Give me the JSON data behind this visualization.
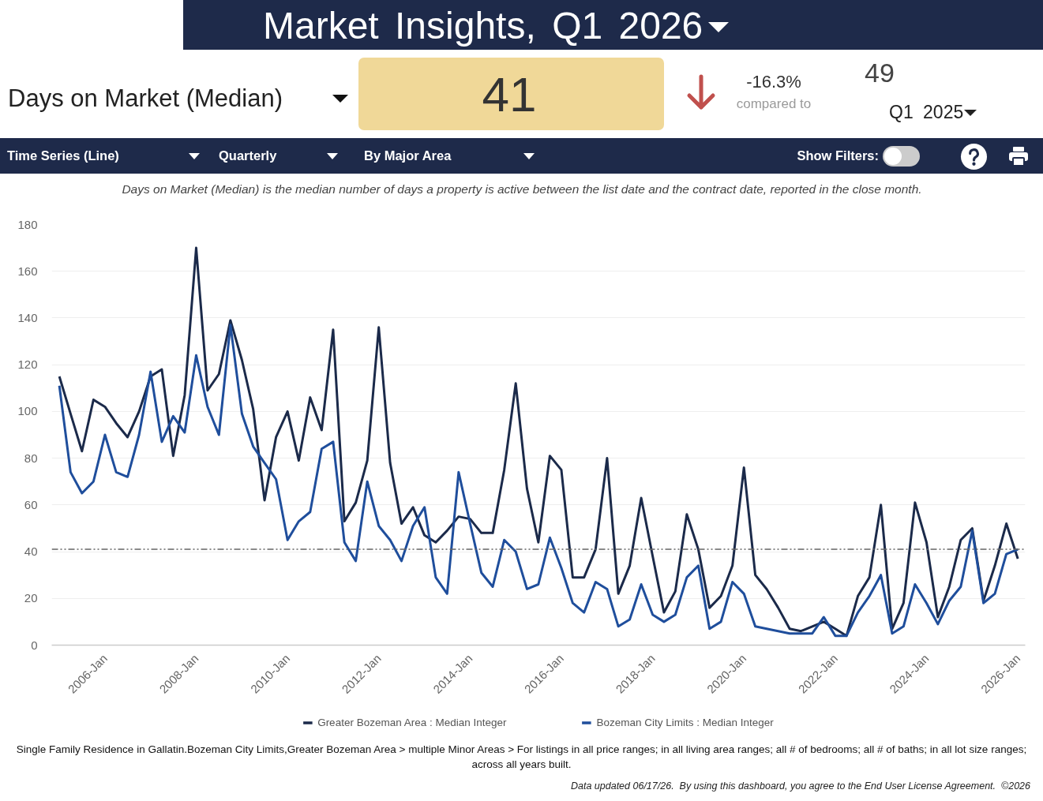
{
  "chart_data": {
    "type": "line",
    "title": "Market Insights, Q1 2026",
    "subtitle": "Days on Market (Median)",
    "annotations": [
      "41",
      "-16.3%",
      "compared to",
      "49",
      "Q1 2025",
      "Time Series (Line)",
      "Quarterly",
      "By Major Area",
      "Show Filters:",
      "Days on Market (Median) is the median number of days a property is active between the list date and the contract date, reported in the close month.",
      "Single Family Residence in Gallatin.Bozeman City Limits,Greater Bozeman Area > multiple Minor Areas > For listings in all price ranges; in all living area ranges; all # of bedrooms; all # of baths; in all lot size ranges; across all years built.",
      "Data updated 06/17/26.  By using this dashboard, you agree to the End User License Agreement.  ©2026"
    ],
    "x": [
      "2005-01",
      "2005-04",
      "2005-07",
      "2005-10",
      "2006-01",
      "2006-04",
      "2006-07",
      "2006-10",
      "2007-01",
      "2007-04",
      "2007-07",
      "2007-10",
      "2008-01",
      "2008-04",
      "2008-07",
      "2008-10",
      "2009-01",
      "2009-04",
      "2009-07",
      "2009-10",
      "2010-01",
      "2010-04",
      "2010-07",
      "2010-10",
      "2011-01",
      "2011-04",
      "2011-07",
      "2011-10",
      "2012-01",
      "2012-04",
      "2012-07",
      "2012-10",
      "2013-01",
      "2013-04",
      "2013-07",
      "2013-10",
      "2014-01",
      "2014-04",
      "2014-07",
      "2014-10",
      "2015-01",
      "2015-04",
      "2015-07",
      "2015-10",
      "2016-01",
      "2016-04",
      "2016-07",
      "2016-10",
      "2017-01",
      "2017-04",
      "2017-07",
      "2017-10",
      "2018-01",
      "2018-04",
      "2018-07",
      "2018-10",
      "2019-01",
      "2019-04",
      "2019-07",
      "2019-10",
      "2020-01",
      "2020-04",
      "2020-07",
      "2020-10",
      "2021-01",
      "2021-04",
      "2021-07",
      "2021-10",
      "2022-01",
      "2022-04",
      "2022-07",
      "2022-10",
      "2023-01",
      "2023-04",
      "2023-07",
      "2023-10",
      "2024-01",
      "2024-04",
      "2024-07",
      "2024-10",
      "2025-01",
      "2025-04",
      "2025-07",
      "2025-10",
      "2026-01"
    ],
    "series": [
      {
        "name": "Greater Bozeman Area : Median Integer",
        "color": "#1b2a4a",
        "values": [
          115,
          99,
          83,
          105,
          102,
          95,
          89,
          100,
          115,
          118,
          81,
          107,
          170,
          109,
          116,
          139,
          122,
          101,
          62,
          89,
          100,
          79,
          106,
          92,
          135,
          53,
          61,
          79,
          136,
          78,
          52,
          59,
          47,
          44,
          49,
          55,
          54,
          48,
          48,
          75,
          112,
          67,
          44,
          81,
          75,
          29,
          29,
          41,
          80,
          22,
          34,
          63,
          38,
          14,
          23,
          56,
          41,
          16,
          21,
          34,
          76,
          30,
          24,
          16,
          7,
          6,
          8,
          10,
          7,
          4,
          21,
          29,
          60,
          7,
          18,
          61,
          44,
          12,
          25,
          45,
          50,
          19,
          34,
          52,
          37
        ]
      },
      {
        "name": "Bozeman City Limits : Median Integer",
        "color": "#1f4e9c",
        "values": [
          111,
          74,
          65,
          70,
          90,
          74,
          72,
          90,
          117,
          87,
          98,
          91,
          124,
          102,
          90,
          137,
          99,
          85,
          78,
          71,
          45,
          53,
          57,
          84,
          87,
          44,
          36,
          70,
          51,
          45,
          36,
          51,
          59,
          29,
          22,
          74,
          52,
          31,
          25,
          45,
          40,
          24,
          26,
          46,
          33,
          18,
          14,
          27,
          24,
          8,
          11,
          26,
          13,
          10,
          13,
          29,
          34,
          7,
          10,
          27,
          22,
          8,
          7,
          6,
          5,
          5,
          5,
          12,
          4,
          4,
          14,
          21,
          30,
          5,
          8,
          26,
          18,
          9,
          19,
          25,
          49,
          18,
          22,
          39,
          41
        ]
      }
    ],
    "xlim": [
      "2004-11",
      "2026-03"
    ],
    "xticks": [
      {
        "value": "2006-01",
        "label": "2006-Jan"
      },
      {
        "value": "2008-01",
        "label": "2008-Jan"
      },
      {
        "value": "2010-01",
        "label": "2010-Jan"
      },
      {
        "value": "2012-01",
        "label": "2012-Jan"
      },
      {
        "value": "2014-01",
        "label": "2014-Jan"
      },
      {
        "value": "2016-01",
        "label": "2016-Jan"
      },
      {
        "value": "2018-01",
        "label": "2018-Jan"
      },
      {
        "value": "2020-01",
        "label": "2020-Jan"
      },
      {
        "value": "2022-01",
        "label": "2022-Jan"
      },
      {
        "value": "2024-01",
        "label": "2024-Jan"
      },
      {
        "value": "2026-01",
        "label": "2026-Jan"
      }
    ],
    "ylim": [
      0,
      180
    ],
    "yticks": [
      0,
      20,
      40,
      60,
      80,
      100,
      120,
      140,
      160,
      180
    ],
    "ref_lines": [
      {
        "axis": "y",
        "value": 41,
        "color": "#666666",
        "line_style": "dashdot"
      }
    ],
    "grid": "y",
    "legend": "bottom",
    "line_style": "solid"
  }
}
